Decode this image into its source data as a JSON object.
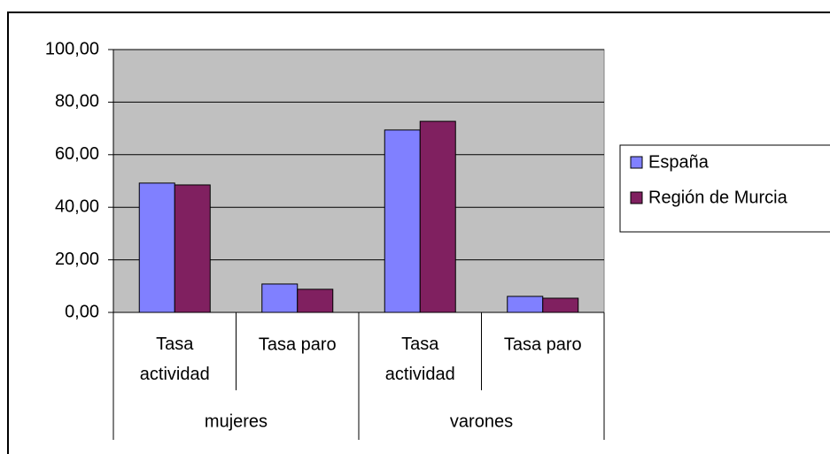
{
  "chart_data": {
    "type": "bar",
    "categories": [
      "Tasa actividad",
      "Tasa paro",
      "Tasa actividad",
      "Tasa paro"
    ],
    "groups": [
      "mujeres",
      "varones"
    ],
    "series": [
      {
        "name": "España",
        "color": "#8080ff",
        "values": [
          49.2,
          10.8,
          69.4,
          6.1
        ]
      },
      {
        "name": "Región de Murcia",
        "color": "#802060",
        "values": [
          48.5,
          8.8,
          72.7,
          5.4
        ]
      }
    ],
    "ylim": [
      0,
      100
    ],
    "yticks": [
      {
        "value": 0,
        "label": "0,00"
      },
      {
        "value": 20,
        "label": "20,00"
      },
      {
        "value": 40,
        "label": "40,00"
      },
      {
        "value": 60,
        "label": "60,00"
      },
      {
        "value": 80,
        "label": "80,00"
      },
      {
        "value": 100,
        "label": "100,00"
      }
    ],
    "grid": true,
    "legend": "right"
  }
}
